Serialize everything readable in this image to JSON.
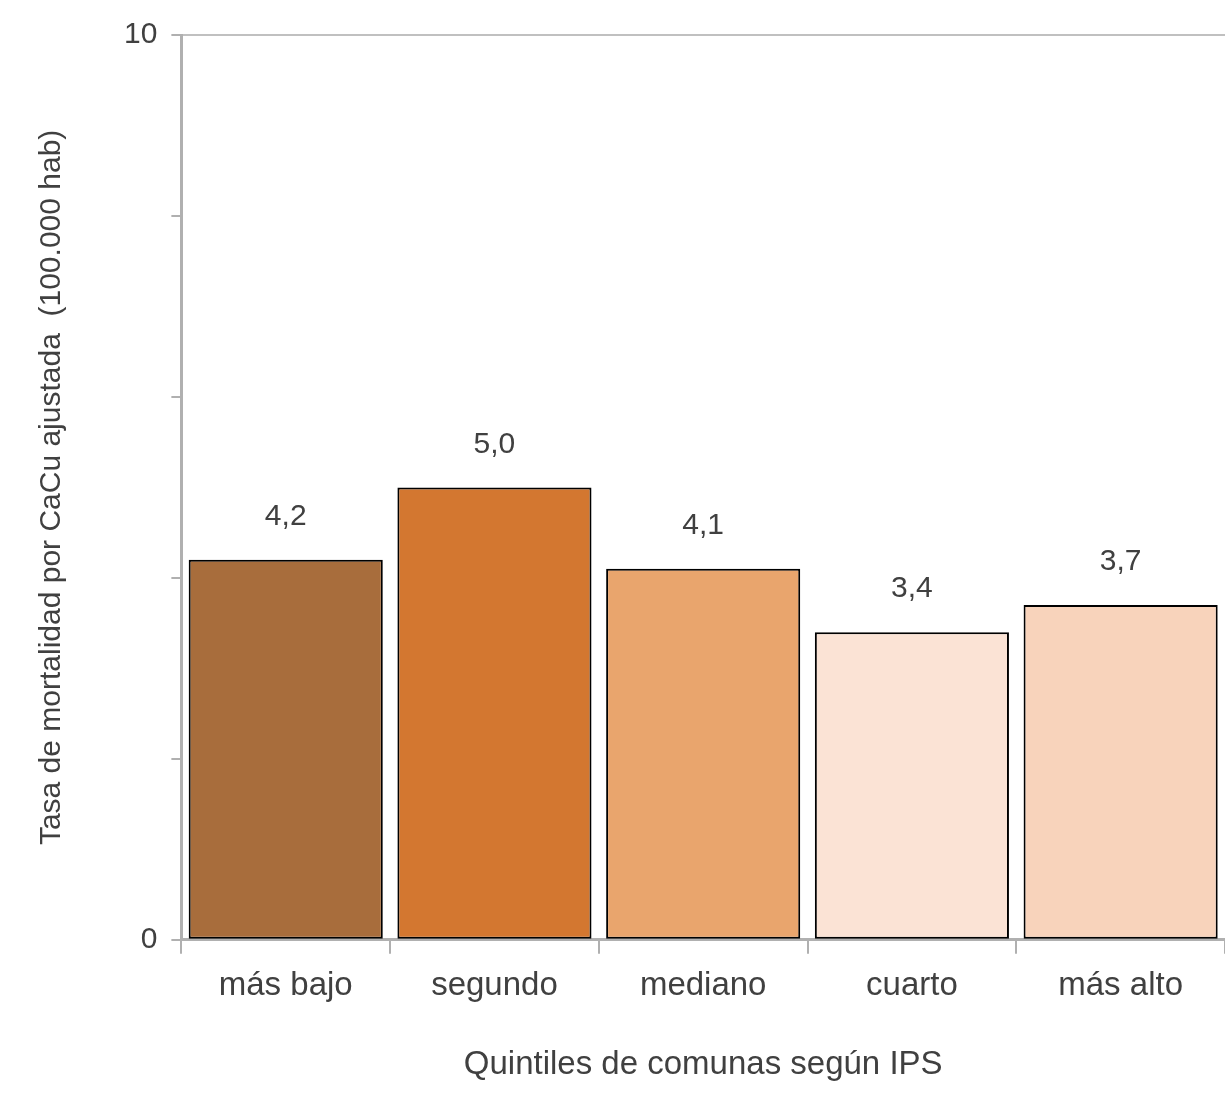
{
  "chart_data": {
    "type": "bar",
    "xlabel": "Quintiles de comunas según IPS",
    "ylabel": "Tasa de mortalidad por CaCu ajustada  (100.000 hab)",
    "categories": [
      "más bajo",
      "segundo",
      "mediano",
      "cuarto",
      "más alto"
    ],
    "values": [
      4.2,
      5.0,
      4.1,
      3.4,
      3.7
    ],
    "value_labels": [
      "4,2",
      "5,0",
      "4,1",
      "3,4",
      "3,7"
    ],
    "colors": [
      "#a86d3c",
      "#d37730",
      "#e9a56d",
      "#fbe3d5",
      "#f8d3bb"
    ],
    "ylim": [
      0,
      10
    ],
    "yticks": [
      0,
      {
        "value": 2,
        "label": null
      },
      {
        "value": 4,
        "label": null
      },
      {
        "value": 6,
        "label": null
      },
      {
        "value": 8,
        "label": null
      },
      10
    ],
    "grid": false,
    "legend": false
  }
}
